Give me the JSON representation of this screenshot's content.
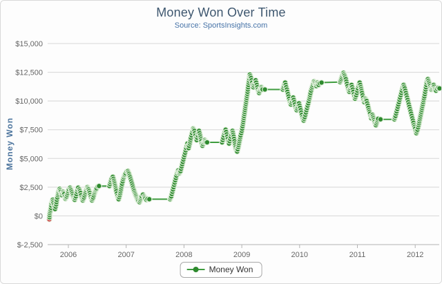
{
  "colors": {
    "title": "#3E576F",
    "subtitle": "#4572A7",
    "y_axis_title": "#4D759E",
    "tick_label": "#666666",
    "gridline": "#D6D6D6",
    "axis_line": "#B3B3B3",
    "series_line": "#3E9C3E",
    "marker_fill": "#2E8A2E",
    "marker_ring": "#EAF5E6",
    "first_point": "#C94040",
    "legend_text": "#333333"
  },
  "chart_data": {
    "type": "line",
    "title": "Money Won Over Time",
    "subtitle": "Source: SportsInsights.com",
    "xlabel": "",
    "ylabel": "Money Won",
    "legend_position": "bottom-center",
    "grid": true,
    "xlim": [
      2005.62,
      2012.46
    ],
    "ylim": [
      -2500,
      15000
    ],
    "x_ticks": [
      2006,
      2007,
      2008,
      2009,
      2010,
      2011,
      2012
    ],
    "x_tick_labels": [
      "2006",
      "2007",
      "2008",
      "2009",
      "2010",
      "2011",
      "2012"
    ],
    "y_ticks": [
      -2500,
      0,
      2500,
      5000,
      7500,
      10000,
      12500,
      15000
    ],
    "y_tick_labels": [
      "$-2,500",
      "$0",
      "$2,500",
      "$5,000",
      "$7,500",
      "$10,000",
      "$12,500",
      "$15,000"
    ],
    "series": [
      {
        "name": "Money Won",
        "first_point_is_red": true,
        "points": [
          [
            2005.67,
            -300
          ],
          [
            2005.68,
            250
          ],
          [
            2005.7,
            700
          ],
          [
            2005.71,
            1100
          ],
          [
            2005.73,
            1400
          ],
          [
            2005.74,
            1100
          ],
          [
            2005.76,
            800
          ],
          [
            2005.77,
            600
          ],
          [
            2005.79,
            1000
          ],
          [
            2005.8,
            1400
          ],
          [
            2005.82,
            1800
          ],
          [
            2005.83,
            2100
          ],
          [
            2005.85,
            2350
          ],
          [
            2005.87,
            2100
          ],
          [
            2005.89,
            1800
          ],
          [
            2005.91,
            2100
          ],
          [
            2005.93,
            1900
          ],
          [
            2005.95,
            1500
          ],
          [
            2005.97,
            1700
          ],
          [
            2005.99,
            2000
          ],
          [
            2006.01,
            2300
          ],
          [
            2006.03,
            2450
          ],
          [
            2006.05,
            2200
          ],
          [
            2006.07,
            1900
          ],
          [
            2006.09,
            1600
          ],
          [
            2006.11,
            1400
          ],
          [
            2006.13,
            1700
          ],
          [
            2006.15,
            2100
          ],
          [
            2006.17,
            2450
          ],
          [
            2006.19,
            2300
          ],
          [
            2006.21,
            2000
          ],
          [
            2006.23,
            1600
          ],
          [
            2006.25,
            1350
          ],
          [
            2006.27,
            1600
          ],
          [
            2006.29,
            1950
          ],
          [
            2006.31,
            2250
          ],
          [
            2006.33,
            2500
          ],
          [
            2006.35,
            2300
          ],
          [
            2006.37,
            2000
          ],
          [
            2006.39,
            1650
          ],
          [
            2006.41,
            1350
          ],
          [
            2006.43,
            1600
          ],
          [
            2006.45,
            1950
          ],
          [
            2006.47,
            2200
          ],
          [
            2006.49,
            2400
          ],
          [
            2006.51,
            2550
          ],
          [
            2006.53,
            2600
          ],
          [
            2006.71,
            2600
          ],
          [
            2006.73,
            2950
          ],
          [
            2006.75,
            3250
          ],
          [
            2006.77,
            3400
          ],
          [
            2006.79,
            3050
          ],
          [
            2006.81,
            2600
          ],
          [
            2006.83,
            2150
          ],
          [
            2006.85,
            1750
          ],
          [
            2006.87,
            1450
          ],
          [
            2006.89,
            1800
          ],
          [
            2006.91,
            2300
          ],
          [
            2006.93,
            2800
          ],
          [
            2006.95,
            3200
          ],
          [
            2006.97,
            3500
          ],
          [
            2006.99,
            3700
          ],
          [
            2007.01,
            3850
          ],
          [
            2007.03,
            3900
          ],
          [
            2007.05,
            3650
          ],
          [
            2007.07,
            3350
          ],
          [
            2007.09,
            3000
          ],
          [
            2007.11,
            2650
          ],
          [
            2007.13,
            2300
          ],
          [
            2007.15,
            2000
          ],
          [
            2007.17,
            1750
          ],
          [
            2007.19,
            1500
          ],
          [
            2007.21,
            1300
          ],
          [
            2007.23,
            1200
          ],
          [
            2007.25,
            1450
          ],
          [
            2007.27,
            1700
          ],
          [
            2007.29,
            1850
          ],
          [
            2007.31,
            1700
          ],
          [
            2007.33,
            1500
          ],
          [
            2007.35,
            1400
          ],
          [
            2007.37,
            1480
          ],
          [
            2007.4,
            1450
          ],
          [
            2007.76,
            1450
          ],
          [
            2007.78,
            1700
          ],
          [
            2007.8,
            2100
          ],
          [
            2007.82,
            2500
          ],
          [
            2007.84,
            2900
          ],
          [
            2007.86,
            3300
          ],
          [
            2007.88,
            3700
          ],
          [
            2007.9,
            3950
          ],
          [
            2007.92,
            3700
          ],
          [
            2007.94,
            3900
          ],
          [
            2007.96,
            4300
          ],
          [
            2007.98,
            4700
          ],
          [
            2008.0,
            5100
          ],
          [
            2008.02,
            5500
          ],
          [
            2008.04,
            5900
          ],
          [
            2008.06,
            6300
          ],
          [
            2008.08,
            5900
          ],
          [
            2008.1,
            6300
          ],
          [
            2008.12,
            6800
          ],
          [
            2008.14,
            7200
          ],
          [
            2008.16,
            7600
          ],
          [
            2008.18,
            7400
          ],
          [
            2008.2,
            7000
          ],
          [
            2008.22,
            6600
          ],
          [
            2008.24,
            7000
          ],
          [
            2008.26,
            7400
          ],
          [
            2008.28,
            7000
          ],
          [
            2008.3,
            6500
          ],
          [
            2008.32,
            6100
          ],
          [
            2008.34,
            6400
          ],
          [
            2008.36,
            6600
          ],
          [
            2008.38,
            6400
          ],
          [
            2008.4,
            6400
          ],
          [
            2008.66,
            6400
          ],
          [
            2008.68,
            6800
          ],
          [
            2008.7,
            7200
          ],
          [
            2008.72,
            7500
          ],
          [
            2008.74,
            7100
          ],
          [
            2008.76,
            6700
          ],
          [
            2008.78,
            6300
          ],
          [
            2008.8,
            6700
          ],
          [
            2008.82,
            7100
          ],
          [
            2008.84,
            7400
          ],
          [
            2008.86,
            6900
          ],
          [
            2008.88,
            6300
          ],
          [
            2008.9,
            5800
          ],
          [
            2008.92,
            5600
          ],
          [
            2008.94,
            6000
          ],
          [
            2008.96,
            6500
          ],
          [
            2008.98,
            7000
          ],
          [
            2009.0,
            7400
          ],
          [
            2009.02,
            8000
          ],
          [
            2009.04,
            8700
          ],
          [
            2009.06,
            9400
          ],
          [
            2009.08,
            10100
          ],
          [
            2009.1,
            10800
          ],
          [
            2009.12,
            11600
          ],
          [
            2009.14,
            12300
          ],
          [
            2009.16,
            12000
          ],
          [
            2009.18,
            11600
          ],
          [
            2009.2,
            11200
          ],
          [
            2009.22,
            11500
          ],
          [
            2009.24,
            11800
          ],
          [
            2009.26,
            11400
          ],
          [
            2009.28,
            11000
          ],
          [
            2009.3,
            10700
          ],
          [
            2009.32,
            11000
          ],
          [
            2009.34,
            11200
          ],
          [
            2009.36,
            11000
          ],
          [
            2009.4,
            11000
          ],
          [
            2009.71,
            11000
          ],
          [
            2009.73,
            11300
          ],
          [
            2009.75,
            11600
          ],
          [
            2009.77,
            11200
          ],
          [
            2009.79,
            10800
          ],
          [
            2009.81,
            10400
          ],
          [
            2009.83,
            10000
          ],
          [
            2009.85,
            9700
          ],
          [
            2009.87,
            10000
          ],
          [
            2009.89,
            10300
          ],
          [
            2009.91,
            9900
          ],
          [
            2009.93,
            9500
          ],
          [
            2009.95,
            9200
          ],
          [
            2009.97,
            9500
          ],
          [
            2009.99,
            9800
          ],
          [
            2010.01,
            9400
          ],
          [
            2010.03,
            9000
          ],
          [
            2010.05,
            8600
          ],
          [
            2010.07,
            8300
          ],
          [
            2010.09,
            8600
          ],
          [
            2010.11,
            9000
          ],
          [
            2010.13,
            9400
          ],
          [
            2010.15,
            9800
          ],
          [
            2010.17,
            10200
          ],
          [
            2010.19,
            10700
          ],
          [
            2010.21,
            11100
          ],
          [
            2010.23,
            11400
          ],
          [
            2010.25,
            11700
          ],
          [
            2010.27,
            11500
          ],
          [
            2010.29,
            11300
          ],
          [
            2010.31,
            11600
          ],
          [
            2010.33,
            11400
          ],
          [
            2010.35,
            11550
          ],
          [
            2010.38,
            11600
          ],
          [
            2010.7,
            11650
          ],
          [
            2010.72,
            11900
          ],
          [
            2010.74,
            12200
          ],
          [
            2010.76,
            12450
          ],
          [
            2010.78,
            12200
          ],
          [
            2010.8,
            11900
          ],
          [
            2010.82,
            11500
          ],
          [
            2010.84,
            11100
          ],
          [
            2010.86,
            10800
          ],
          [
            2010.88,
            11100
          ],
          [
            2010.9,
            11400
          ],
          [
            2010.92,
            11000
          ],
          [
            2010.94,
            10600
          ],
          [
            2010.96,
            10200
          ],
          [
            2010.98,
            10500
          ],
          [
            2011.0,
            10900
          ],
          [
            2011.02,
            11300
          ],
          [
            2011.04,
            11600
          ],
          [
            2011.06,
            11200
          ],
          [
            2011.08,
            10700
          ],
          [
            2011.1,
            10300
          ],
          [
            2011.12,
            9900
          ],
          [
            2011.14,
            10200
          ],
          [
            2011.16,
            10000
          ],
          [
            2011.18,
            9600
          ],
          [
            2011.2,
            9200
          ],
          [
            2011.22,
            8900
          ],
          [
            2011.24,
            8500
          ],
          [
            2011.26,
            8800
          ],
          [
            2011.28,
            8500
          ],
          [
            2011.3,
            8200
          ],
          [
            2011.32,
            7900
          ],
          [
            2011.34,
            8200
          ],
          [
            2011.36,
            8450
          ],
          [
            2011.4,
            8400
          ],
          [
            2011.64,
            8400
          ],
          [
            2011.66,
            8700
          ],
          [
            2011.68,
            9100
          ],
          [
            2011.7,
            9500
          ],
          [
            2011.72,
            9900
          ],
          [
            2011.74,
            10300
          ],
          [
            2011.76,
            10700
          ],
          [
            2011.78,
            11100
          ],
          [
            2011.8,
            11400
          ],
          [
            2011.82,
            11100
          ],
          [
            2011.84,
            10700
          ],
          [
            2011.86,
            10300
          ],
          [
            2011.88,
            9900
          ],
          [
            2011.9,
            9500
          ],
          [
            2011.92,
            9100
          ],
          [
            2011.94,
            8700
          ],
          [
            2011.96,
            8300
          ],
          [
            2011.98,
            7900
          ],
          [
            2012.0,
            7600
          ],
          [
            2012.02,
            7200
          ],
          [
            2012.04,
            7500
          ],
          [
            2012.06,
            7900
          ],
          [
            2012.08,
            8400
          ],
          [
            2012.1,
            8900
          ],
          [
            2012.12,
            9400
          ],
          [
            2012.14,
            9900
          ],
          [
            2012.16,
            10400
          ],
          [
            2012.18,
            11000
          ],
          [
            2012.2,
            11600
          ],
          [
            2012.22,
            11900
          ],
          [
            2012.24,
            11600
          ],
          [
            2012.26,
            11300
          ],
          [
            2012.28,
            11000
          ],
          [
            2012.3,
            11200
          ],
          [
            2012.32,
            11400
          ],
          [
            2012.34,
            11100
          ],
          [
            2012.36,
            10900
          ],
          [
            2012.38,
            11050
          ],
          [
            2012.4,
            11150
          ],
          [
            2012.42,
            11100
          ]
        ]
      }
    ]
  }
}
